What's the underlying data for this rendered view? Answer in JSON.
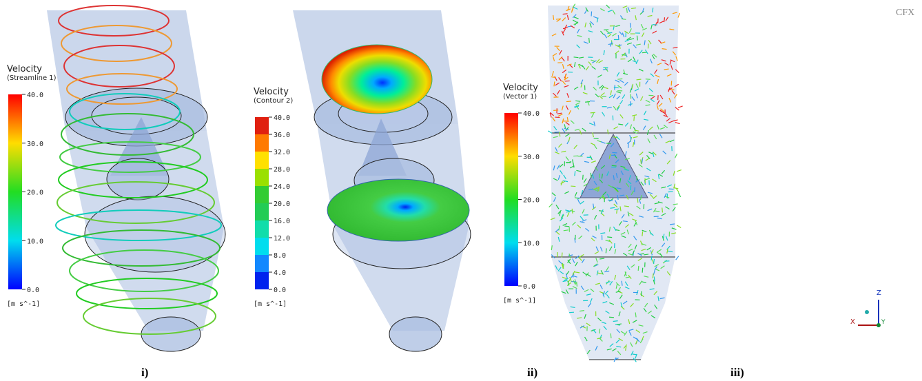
{
  "logo": "CFX",
  "panels": [
    {
      "label": "i)",
      "legend": {
        "title": "Velocity",
        "subtitle": "(Streamline 1)",
        "ticks": [
          "40.0",
          "30.0",
          "20.0",
          "10.0",
          "0.0"
        ],
        "units": "[m s^-1]",
        "style": "continuous"
      }
    },
    {
      "label": "ii)",
      "legend": {
        "title": "Velocity",
        "subtitle": "(Contour 2)",
        "ticks": [
          "40.0",
          "36.0",
          "32.0",
          "28.0",
          "24.0",
          "20.0",
          "16.0",
          "12.0",
          "8.0",
          "4.0",
          "0.0"
        ],
        "units": "[m s^-1]",
        "style": "banded"
      }
    },
    {
      "label": "iii)",
      "legend": {
        "title": "Velocity",
        "subtitle": "(Vector 1)",
        "ticks": [
          "40.0",
          "30.0",
          "20.0",
          "10.0",
          "0.0"
        ],
        "units": "[m s^-1]",
        "style": "continuous"
      }
    }
  ],
  "axes": {
    "z": "Z",
    "x": "X",
    "y": "Y"
  }
}
